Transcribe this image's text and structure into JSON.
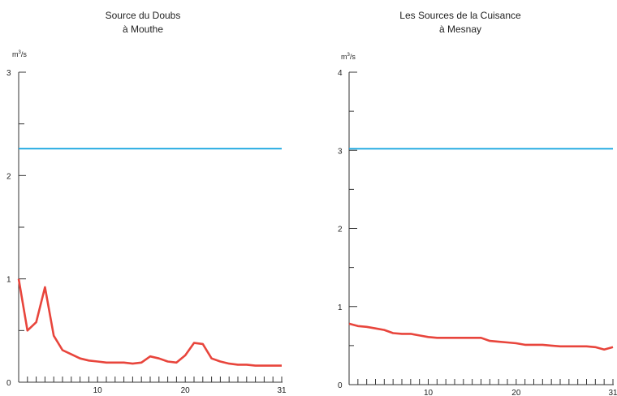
{
  "chart_data": [
    {
      "type": "line",
      "title": "Source du Doubs",
      "subtitle": "à Mouthe",
      "ylabel": "m³/s",
      "ylabel_base": "m",
      "ylabel_sup": "3",
      "ylabel_rest": "/s",
      "xlim": [
        1,
        31
      ],
      "ylim": [
        0,
        3
      ],
      "yticks": [
        0,
        1,
        2,
        3
      ],
      "xticks_labeled": [
        10,
        20,
        31
      ],
      "colors": {
        "reference": "#1aa7e0",
        "flow": "#e8453c"
      },
      "series": [
        {
          "role": "reference",
          "x": [
            1,
            31
          ],
          "y": [
            2.26,
            2.26
          ]
        },
        {
          "role": "flow",
          "x": [
            1,
            2,
            3,
            4,
            5,
            6,
            7,
            8,
            9,
            10,
            11,
            12,
            13,
            14,
            15,
            16,
            17,
            18,
            19,
            20,
            21,
            22,
            23,
            24,
            25,
            26,
            27,
            28,
            29,
            30,
            31
          ],
          "y": [
            1.0,
            0.5,
            0.58,
            0.92,
            0.45,
            0.31,
            0.27,
            0.23,
            0.21,
            0.2,
            0.19,
            0.19,
            0.19,
            0.18,
            0.19,
            0.25,
            0.23,
            0.2,
            0.19,
            0.26,
            0.38,
            0.37,
            0.23,
            0.2,
            0.18,
            0.17,
            0.17,
            0.16,
            0.16,
            0.16,
            0.16
          ]
        }
      ]
    },
    {
      "type": "line",
      "title": "Les Sources de la Cuisance",
      "subtitle": "à Mesnay",
      "ylabel": "m³/s",
      "ylabel_base": "m",
      "ylabel_sup": "3",
      "ylabel_rest": "/s",
      "xlim": [
        1,
        31
      ],
      "ylim": [
        0,
        4
      ],
      "yticks": [
        0,
        1,
        2,
        3,
        4
      ],
      "xticks_labeled": [
        10,
        20,
        31
      ],
      "colors": {
        "reference": "#1aa7e0",
        "flow": "#e8453c"
      },
      "series": [
        {
          "role": "reference",
          "x": [
            1,
            31
          ],
          "y": [
            3.02,
            3.02
          ]
        },
        {
          "role": "flow",
          "x": [
            1,
            2,
            3,
            4,
            5,
            6,
            7,
            8,
            9,
            10,
            11,
            12,
            13,
            14,
            15,
            16,
            17,
            18,
            19,
            20,
            21,
            22,
            23,
            24,
            25,
            26,
            27,
            28,
            29,
            30,
            31
          ],
          "y": [
            0.78,
            0.75,
            0.74,
            0.72,
            0.7,
            0.66,
            0.65,
            0.65,
            0.63,
            0.61,
            0.6,
            0.6,
            0.6,
            0.6,
            0.6,
            0.6,
            0.56,
            0.55,
            0.54,
            0.53,
            0.51,
            0.51,
            0.51,
            0.5,
            0.49,
            0.49,
            0.49,
            0.49,
            0.48,
            0.45,
            0.48
          ]
        }
      ]
    }
  ]
}
